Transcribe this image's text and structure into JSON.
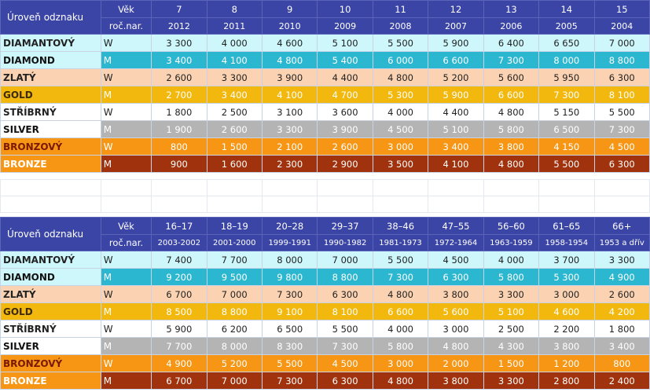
{
  "level_header": "Úroveň odznaku",
  "age_label": "Věk",
  "birth_label": "roč.nar.",
  "levels": [
    {
      "name": "DIAMANTOVÝ",
      "alt": "DIAMOND"
    },
    {
      "name": "ZLATÝ",
      "alt": "GOLD"
    },
    {
      "name": "STŘÍBRNÝ",
      "alt": "SILVER"
    },
    {
      "name": "BRONZOVÝ",
      "alt": "BRONZE"
    }
  ],
  "genders": {
    "w": "W",
    "m": "M"
  },
  "table1": {
    "ages": [
      "7",
      "8",
      "9",
      "10",
      "11",
      "12",
      "13",
      "14",
      "15"
    ],
    "years": [
      "2012",
      "2011",
      "2010",
      "2009",
      "2008",
      "2007",
      "2006",
      "2005",
      "2004"
    ],
    "rows": [
      [
        "3 300",
        "4 000",
        "4 600",
        "5 100",
        "5 500",
        "5 900",
        "6 400",
        "6 650",
        "7 000"
      ],
      [
        "3 400",
        "4 100",
        "4 800",
        "5 400",
        "6 000",
        "6 600",
        "7 300",
        "8 000",
        "8 800"
      ],
      [
        "2 600",
        "3 300",
        "3 900",
        "4 400",
        "4 800",
        "5 200",
        "5 600",
        "5 950",
        "6 300"
      ],
      [
        "2 700",
        "3 400",
        "4 100",
        "4 700",
        "5 300",
        "5 900",
        "6 600",
        "7 300",
        "8 100"
      ],
      [
        "1 800",
        "2 500",
        "3 100",
        "3 600",
        "4 000",
        "4 400",
        "4 800",
        "5 150",
        "5 500"
      ],
      [
        "1 900",
        "2 600",
        "3 300",
        "3 900",
        "4 500",
        "5 100",
        "5 800",
        "6 500",
        "7 300"
      ],
      [
        "800",
        "1 500",
        "2 100",
        "2 600",
        "3 000",
        "3 400",
        "3 800",
        "4 150",
        "4 500"
      ],
      [
        "900",
        "1 600",
        "2 300",
        "2 900",
        "3 500",
        "4 100",
        "4 800",
        "5 500",
        "6 300"
      ]
    ]
  },
  "table2": {
    "ages": [
      "16–17",
      "18–19",
      "20–28",
      "29–37",
      "38–46",
      "47–55",
      "56–60",
      "61–65",
      "66+"
    ],
    "years": [
      "2003-2002",
      "2001-2000",
      "1999-1991",
      "1990-1982",
      "1981-1973",
      "1972-1964",
      "1963-1959",
      "1958-1954",
      "1953 a dřív"
    ],
    "rows": [
      [
        "7 400",
        "7 700",
        "8 000",
        "7 000",
        "5 500",
        "4 500",
        "4 000",
        "3 700",
        "3 300"
      ],
      [
        "9 200",
        "9 500",
        "9 800",
        "8 800",
        "7 300",
        "6 300",
        "5 800",
        "5 300",
        "4 900"
      ],
      [
        "6 700",
        "7 000",
        "7 300",
        "6 300",
        "4 800",
        "3 800",
        "3 300",
        "3 000",
        "2 600"
      ],
      [
        "8 500",
        "8 800",
        "9 100",
        "8 100",
        "6 600",
        "5 600",
        "5 100",
        "4 600",
        "4 200"
      ],
      [
        "5 900",
        "6 200",
        "6 500",
        "5 500",
        "4 000",
        "3 000",
        "2 500",
        "2 200",
        "1 800"
      ],
      [
        "7 700",
        "8 000",
        "8 300",
        "7 300",
        "5 800",
        "4 800",
        "4 300",
        "3 800",
        "3 400"
      ],
      [
        "4 900",
        "5 200",
        "5 500",
        "4 500",
        "3 000",
        "2 000",
        "1 500",
        "1 200",
        "800"
      ],
      [
        "6 700",
        "7 000",
        "7 300",
        "6 300",
        "4 800",
        "3 800",
        "3 300",
        "2 800",
        "2 400"
      ]
    ]
  }
}
